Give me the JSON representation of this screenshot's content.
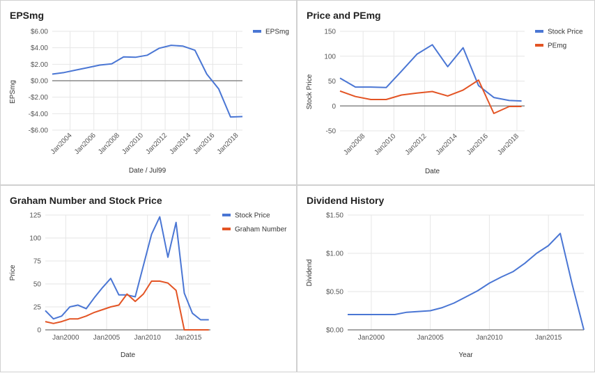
{
  "chart_data": [
    {
      "type": "line",
      "title": "EPSmg",
      "xlabel": "Date / Jul99",
      "ylabel": "EPSmg",
      "x_ticks": [
        "Jan2004",
        "Jan2006",
        "Jan2008",
        "Jan2010",
        "Jan2012",
        "Jan2014",
        "Jan2016",
        "Jan2018"
      ],
      "y_ticks": [
        "$6.00",
        "$4.00",
        "$2.00",
        "$0.00",
        "-$2.00",
        "-$4.00",
        "-$6.00"
      ],
      "ylim": [
        -6,
        6
      ],
      "legend_position": "right",
      "series": [
        {
          "name": "EPSmg",
          "color": "#4a76d4",
          "x": [
            2002.5,
            2003.5,
            2004.5,
            2005.5,
            2006.5,
            2007.5,
            2008.5,
            2009.5,
            2010.5,
            2011.5,
            2012.5,
            2013.5,
            2014.5,
            2015.5,
            2016.5,
            2017.5,
            2018.5
          ],
          "values": [
            0.8,
            1.0,
            1.3,
            1.6,
            1.9,
            2.05,
            2.9,
            2.85,
            3.1,
            3.95,
            4.3,
            4.2,
            3.7,
            0.8,
            -1.0,
            -4.4,
            -4.35
          ]
        }
      ]
    },
    {
      "type": "line",
      "title": "Price and PEmg",
      "xlabel": "Date",
      "ylabel": "Stock Price",
      "x_ticks": [
        "Jan2008",
        "Jan2010",
        "Jan2012",
        "Jan2014",
        "Jan2016",
        "Jan2018"
      ],
      "y_ticks": [
        "150",
        "100",
        "50",
        "0",
        "-50"
      ],
      "ylim": [
        -50,
        150
      ],
      "legend_position": "right",
      "series": [
        {
          "name": "Stock Price",
          "color": "#4a76d4",
          "x": [
            2006.5,
            2007.5,
            2008.5,
            2009.5,
            2010.5,
            2011.5,
            2012.5,
            2013.5,
            2014.5,
            2015.5,
            2016.5,
            2017.5,
            2018.3
          ],
          "values": [
            56,
            38,
            38,
            37,
            70,
            104,
            123,
            79,
            117,
            41,
            17,
            11,
            10
          ]
        },
        {
          "name": "PEmg",
          "color": "#e35424",
          "x": [
            2006.5,
            2007.5,
            2008.5,
            2009.5,
            2010.5,
            2011.5,
            2012.5,
            2013.5,
            2014.5,
            2015.5,
            2016.5,
            2017.5,
            2018.3
          ],
          "values": [
            30,
            19,
            13,
            13,
            22,
            26,
            29,
            20,
            32,
            52,
            -15,
            -1,
            -1
          ]
        }
      ]
    },
    {
      "type": "line",
      "title": "Graham Number and Stock Price",
      "xlabel": "Date",
      "ylabel": "Price",
      "x_ticks": [
        "Jan2000",
        "Jan2005",
        "Jan2010",
        "Jan2015"
      ],
      "y_ticks": [
        "125",
        "100",
        "75",
        "50",
        "25",
        "0"
      ],
      "ylim": [
        0,
        125
      ],
      "legend_position": "right",
      "series": [
        {
          "name": "Stock Price",
          "color": "#4a76d4",
          "x": [
            1997.5,
            1998.5,
            1999.5,
            2000.5,
            2001.5,
            2002.5,
            2003.5,
            2004.5,
            2005.5,
            2006.5,
            2007.5,
            2008.5,
            2009.5,
            2010.5,
            2011.5,
            2012.5,
            2013.5,
            2014.5,
            2015.5,
            2016.5,
            2017.5
          ],
          "values": [
            21,
            12,
            15,
            25,
            27,
            23,
            35,
            46,
            56,
            38,
            38,
            36,
            70,
            104,
            123,
            79,
            117,
            40,
            18,
            11,
            11
          ]
        },
        {
          "name": "Graham Number",
          "color": "#e35424",
          "x": [
            1997.5,
            1998.5,
            1999.5,
            2000.5,
            2001.5,
            2002.5,
            2003.5,
            2004.5,
            2005.5,
            2006.5,
            2007.5,
            2008.5,
            2009.5,
            2010.5,
            2011.5,
            2012.5,
            2013.5,
            2014.5,
            2015.5,
            2016.5,
            2017.5
          ],
          "values": [
            9,
            7,
            9,
            12,
            12,
            15,
            19,
            22,
            25,
            27,
            39,
            31,
            39,
            53,
            53,
            51,
            43,
            0,
            0,
            0,
            0
          ]
        }
      ]
    },
    {
      "type": "line",
      "title": "Dividend History",
      "xlabel": "Year",
      "ylabel": "Dividend",
      "x_ticks": [
        "Jan2000",
        "Jan2005",
        "Jan2010",
        "Jan2015"
      ],
      "y_ticks": [
        "$1.50",
        "$1.00",
        "$0.50",
        "$0.00"
      ],
      "ylim": [
        0,
        1.5
      ],
      "legend_position": "none",
      "series": [
        {
          "name": "Dividend",
          "color": "#4a76d4",
          "x": [
            1998,
            1999,
            2000,
            2001,
            2002,
            2003,
            2004,
            2005,
            2006,
            2007,
            2008,
            2009,
            2010,
            2011,
            2012,
            2013,
            2014,
            2015,
            2016,
            2017,
            2018
          ],
          "values": [
            0.2,
            0.2,
            0.2,
            0.2,
            0.2,
            0.23,
            0.24,
            0.25,
            0.29,
            0.35,
            0.43,
            0.51,
            0.61,
            0.69,
            0.76,
            0.87,
            1.0,
            1.1,
            1.26,
            0.6,
            0
          ]
        }
      ]
    }
  ]
}
